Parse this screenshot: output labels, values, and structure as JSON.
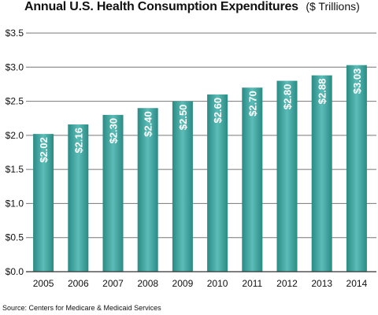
{
  "title": "Annual U.S. Health Consumption Expenditures",
  "unit_note": "($ Trillions)",
  "source": "Source: Centers for Medicare & Medicaid Services",
  "colors": {
    "bar_light": "#5cbdb8",
    "bar_dark": "#2a8a84",
    "grid": "#777777",
    "axis": "#333333"
  },
  "chart_data": {
    "type": "bar",
    "categories": [
      "2005",
      "2006",
      "2007",
      "2008",
      "2009",
      "2010",
      "2011",
      "2012",
      "2013",
      "2014"
    ],
    "values": [
      2.02,
      2.16,
      2.3,
      2.4,
      2.5,
      2.6,
      2.7,
      2.8,
      2.88,
      3.03
    ],
    "data_labels": [
      "$2.02",
      "$2.16",
      "$2.30",
      "$2.40",
      "$2.50",
      "$2.60",
      "$2.70",
      "$2.80",
      "$2.88",
      "$3.03"
    ],
    "ylim": [
      0,
      3.5
    ],
    "yticks": [
      0,
      0.5,
      1.0,
      1.5,
      2.0,
      2.5,
      3.0,
      3.5
    ],
    "ytick_labels": [
      "$0.0",
      "$0.5",
      "$1.0",
      "$1.5",
      "$2.0",
      "$2.5",
      "$3.0",
      "$3.5"
    ],
    "grid": true,
    "legend": "none"
  }
}
